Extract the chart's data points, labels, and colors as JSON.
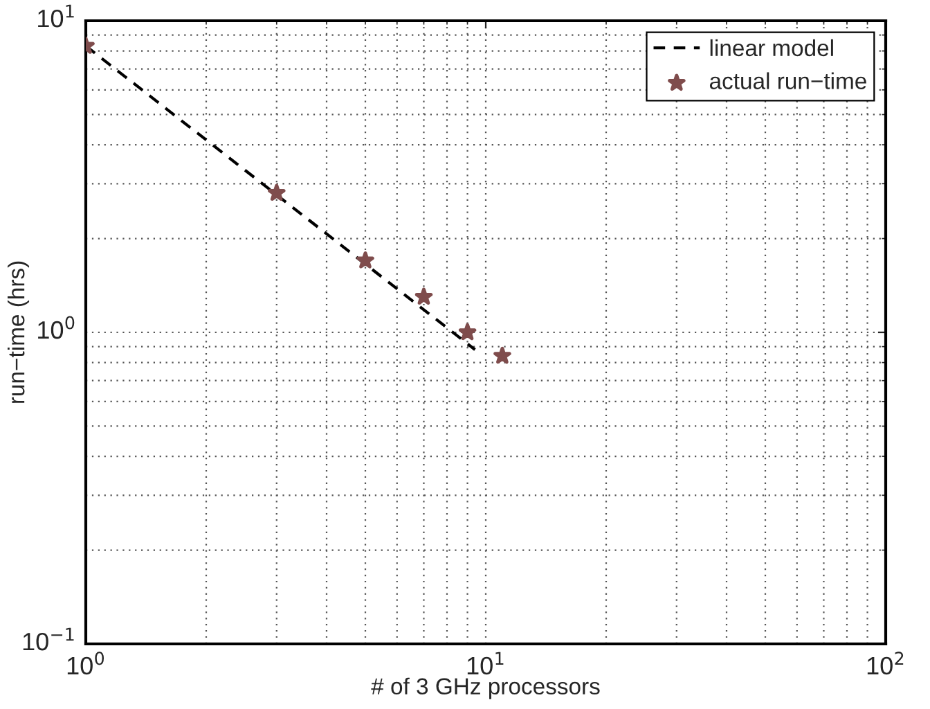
{
  "chart_data": {
    "type": "scatter",
    "xlabel": "# of 3 GHz processors",
    "ylabel": "run−time (hrs)",
    "log": "xy",
    "xlim": [
      1,
      100
    ],
    "ylim": [
      0.1,
      10
    ],
    "xticks": [
      {
        "value": 1,
        "label": "10$^{0}$"
      },
      {
        "value": 10,
        "label": "10$^{1}$"
      },
      {
        "value": 100,
        "label": "10$^{2}$"
      }
    ],
    "yticks": [
      {
        "value": 0.1,
        "label": "10$^{−1}$"
      },
      {
        "value": 1,
        "label": "10$^{0}$"
      },
      {
        "value": 10,
        "label": "10$^{1}$"
      }
    ],
    "grid": true,
    "legend": "top right",
    "series": [
      {
        "name": "linear model",
        "type": "line",
        "line_style": "dashed",
        "marker": "none",
        "color": "#000000",
        "x": [
          1,
          9.4
        ],
        "values": [
          8.3,
          0.88
        ]
      },
      {
        "name": "actual run−time",
        "marker": "star",
        "color": "#7f4c4c",
        "x": [
          1,
          3,
          5,
          7,
          9,
          11
        ],
        "values": [
          8.3,
          2.8,
          1.7,
          1.3,
          1.0,
          0.84
        ]
      }
    ]
  }
}
